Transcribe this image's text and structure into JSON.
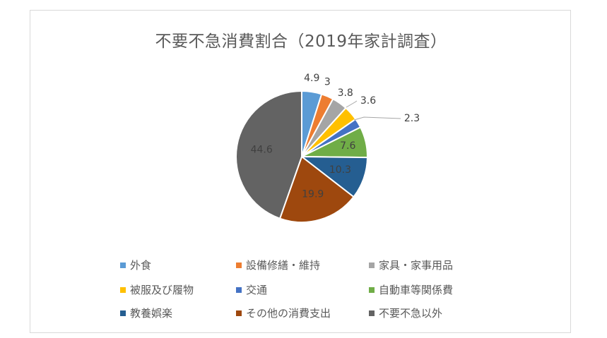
{
  "chart_data": {
    "type": "pie",
    "title": "不要不急消費割合（2019年家計調査）",
    "categories": [
      "外食",
      "設備修繕・維持",
      "家具・家事用品",
      "被服及び履物",
      "交通",
      "自動車等関係費",
      "教養娯楽",
      "その他の消費支出",
      "不要不急以外"
    ],
    "values": [
      4.9,
      3,
      3.8,
      3.6,
      2.3,
      7.6,
      10.3,
      19.9,
      44.6
    ],
    "labels": [
      "4.9",
      "3",
      "3.8",
      "3.6",
      "2.3",
      "7.6",
      "10.3",
      "19.9",
      "44.6"
    ],
    "colors": [
      "#5b9bd5",
      "#ed7d31",
      "#a5a5a5",
      "#ffc000",
      "#4472c4",
      "#70ad47",
      "#255e91",
      "#9e480e",
      "#636363"
    ],
    "legend": "bottom",
    "start_angle": "12 o'clock",
    "direction": "clockwise"
  }
}
